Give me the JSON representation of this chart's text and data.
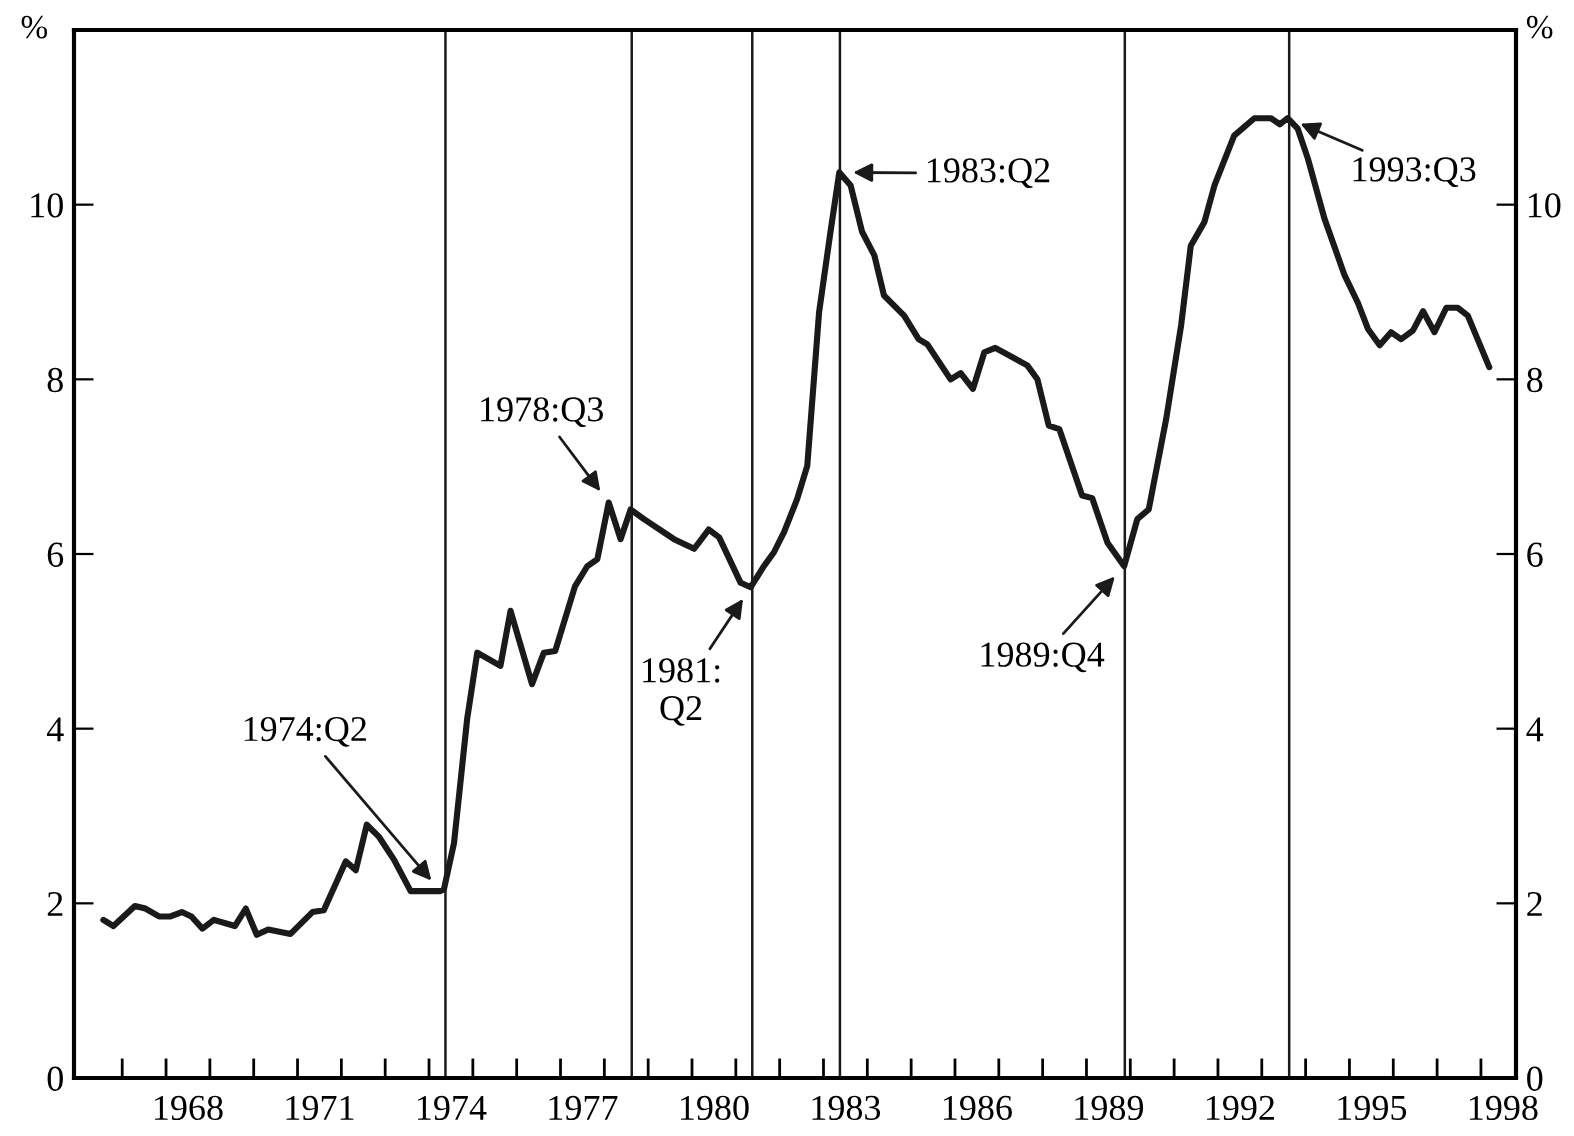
{
  "chart_data": {
    "type": "line",
    "x": [
      1966.57,
      1966.8,
      1967.29,
      1967.53,
      1967.84,
      1968.1,
      1968.36,
      1968.58,
      1968.83,
      1969.09,
      1969.57,
      1969.82,
      1970.07,
      1970.33,
      1970.84,
      1971.34,
      1971.6,
      1972.1,
      1972.33,
      1972.58,
      1972.86,
      1973.2,
      1973.58,
      1974.26,
      1974.34,
      1974.57,
      1974.87,
      1975.1,
      1975.63,
      1975.86,
      1976.35,
      1976.62,
      1976.88,
      1977.33,
      1977.61,
      1977.84,
      1978.1,
      1978.37,
      1978.6,
      1978.9,
      1979.59,
      1980.05,
      1980.38,
      1980.62,
      1981.11,
      1981.34,
      1981.64,
      1981.87,
      1982.1,
      1982.4,
      1982.63,
      1982.9,
      1983.16,
      1983.36,
      1983.62,
      1983.88,
      1984.16,
      1984.38,
      1984.84,
      1985.17,
      1985.37,
      1985.9,
      1986.13,
      1986.41,
      1986.67,
      1986.92,
      1987.65,
      1987.88,
      1988.14,
      1988.38,
      1988.9,
      1989.13,
      1989.48,
      1989.86,
      1990.16,
      1990.42,
      1990.82,
      1991.16,
      1991.38,
      1991.69,
      1991.92,
      1992.37,
      1992.83,
      1993.21,
      1993.41,
      1993.59,
      1993.82,
      1994.05,
      1994.43,
      1994.89,
      1995.19,
      1995.42,
      1995.69,
      1995.95,
      1996.18,
      1996.45,
      1996.68,
      1996.94,
      1997.21,
      1997.47,
      1997.7,
      1998.19
    ],
    "series": [
      {
        "color": "#1a1a1a",
        "values": [
          1.81,
          1.74,
          1.97,
          1.94,
          1.85,
          1.85,
          1.9,
          1.85,
          1.71,
          1.81,
          1.74,
          1.94,
          1.64,
          1.7,
          1.65,
          1.9,
          1.92,
          2.48,
          2.38,
          2.9,
          2.76,
          2.5,
          2.14,
          2.14,
          2.16,
          2.69,
          4.11,
          4.87,
          4.72,
          5.35,
          4.51,
          4.87,
          4.89,
          5.63,
          5.86,
          5.94,
          6.59,
          6.17,
          6.51,
          6.4,
          6.17,
          6.06,
          6.28,
          6.19,
          5.67,
          5.62,
          5.86,
          6.02,
          6.25,
          6.63,
          7.01,
          8.77,
          9.69,
          10.37,
          10.22,
          9.69,
          9.42,
          8.96,
          8.73,
          8.46,
          8.4,
          8.0,
          8.07,
          7.89,
          8.31,
          8.36,
          8.16,
          8.0,
          7.47,
          7.43,
          6.67,
          6.64,
          6.13,
          5.86,
          6.4,
          6.51,
          7.55,
          8.62,
          9.53,
          9.8,
          10.22,
          10.79,
          10.99,
          10.99,
          10.92,
          10.99,
          10.87,
          10.53,
          9.84,
          9.19,
          8.88,
          8.58,
          8.39,
          8.54,
          8.46,
          8.56,
          8.78,
          8.54,
          8.82,
          8.82,
          8.73,
          8.14
        ]
      }
    ],
    "ylabel": "%",
    "y2label": "%",
    "xlim": [
      1965.9,
      1998.8
    ],
    "ylim": [
      0,
      12
    ],
    "yticks": [
      0,
      2,
      4,
      6,
      8,
      10
    ],
    "y2lim": [
      0,
      12
    ],
    "y2ticks": [
      0,
      2,
      4,
      6,
      8,
      10
    ],
    "xticks": [
      {
        "value": 1967,
        "label": null
      },
      {
        "value": 1968,
        "label": null
      },
      {
        "value": 1969,
        "label": null
      },
      {
        "value": 1970,
        "label": null
      },
      {
        "value": 1971,
        "label": null
      },
      {
        "value": 1972,
        "label": null
      },
      {
        "value": 1973,
        "label": null
      },
      {
        "value": 1974,
        "label": null
      },
      {
        "value": 1975,
        "label": null
      },
      {
        "value": 1976,
        "label": null
      },
      {
        "value": 1977,
        "label": null
      },
      {
        "value": 1978,
        "label": null
      },
      {
        "value": 1979,
        "label": null
      },
      {
        "value": 1980,
        "label": null
      },
      {
        "value": 1981,
        "label": null
      },
      {
        "value": 1982,
        "label": null
      },
      {
        "value": 1983,
        "label": null
      },
      {
        "value": 1984,
        "label": null
      },
      {
        "value": 1985,
        "label": null
      },
      {
        "value": 1986,
        "label": null
      },
      {
        "value": 1987,
        "label": null
      },
      {
        "value": 1988,
        "label": null
      },
      {
        "value": 1989,
        "label": null
      },
      {
        "value": 1990,
        "label": null
      },
      {
        "value": 1991,
        "label": null
      },
      {
        "value": 1992,
        "label": null
      },
      {
        "value": 1993,
        "label": null
      },
      {
        "value": 1994,
        "label": null
      },
      {
        "value": 1995,
        "label": null
      },
      {
        "value": 1996,
        "label": null
      },
      {
        "value": 1997,
        "label": null
      },
      {
        "value": 1998,
        "label": null
      },
      {
        "value": 1968.5,
        "label": "1968"
      },
      {
        "value": 1971.5,
        "label": "1971"
      },
      {
        "value": 1974.5,
        "label": "1974"
      },
      {
        "value": 1977.5,
        "label": "1977"
      },
      {
        "value": 1980.5,
        "label": "1980"
      },
      {
        "value": 1983.5,
        "label": "1983"
      },
      {
        "value": 1986.5,
        "label": "1986"
      },
      {
        "value": 1989.5,
        "label": "1989"
      },
      {
        "value": 1992.5,
        "label": "1992"
      },
      {
        "value": 1995.5,
        "label": "1995"
      },
      {
        "value": 1998.5,
        "label": "1998"
      }
    ],
    "ref_lines": [
      {
        "axis": "x",
        "value": 1974.375,
        "color": "#1a1a1a"
      },
      {
        "axis": "x",
        "value": 1978.625,
        "color": "#1a1a1a"
      },
      {
        "axis": "x",
        "value": 1981.375,
        "color": "#1a1a1a"
      },
      {
        "axis": "x",
        "value": 1983.375,
        "color": "#1a1a1a"
      },
      {
        "axis": "x",
        "value": 1989.875,
        "color": "#1a1a1a"
      },
      {
        "axis": "x",
        "value": 1993.625,
        "color": "#1a1a1a"
      }
    ],
    "annotations": [
      {
        "text": "1974:Q2",
        "x": 1974.26,
        "y": 2.14
      },
      {
        "text": "1978:Q3",
        "x": 1978.1,
        "y": 6.59
      },
      {
        "text": "1981:\nQ2",
        "x": 1981.34,
        "y": 5.62
      },
      {
        "text": "1983:Q2",
        "x": 1983.36,
        "y": 10.37
      },
      {
        "text": "1989:Q4",
        "x": 1989.86,
        "y": 5.86
      },
      {
        "text": "1993:Q3",
        "x": 1993.59,
        "y": 10.99
      }
    ],
    "grid": false
  }
}
